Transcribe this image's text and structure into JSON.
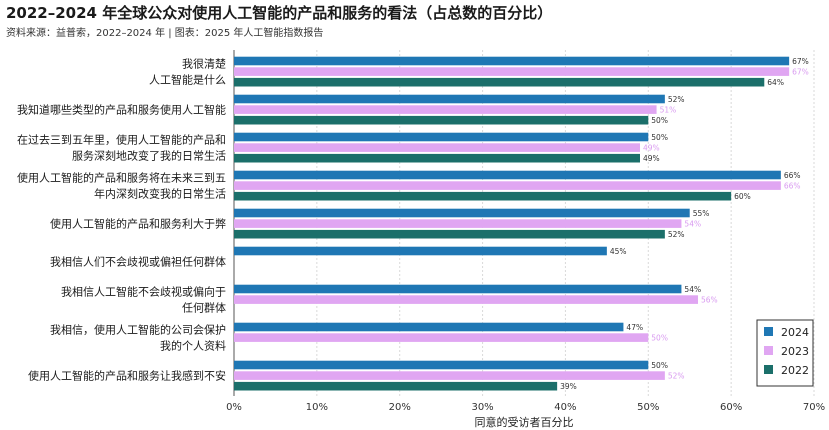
{
  "title": "2022–2024 年全球公众对使用人工智能的产品和服务的看法（占总数的百分比）",
  "source": "资料来源：益普索，2022–2024 年 | 图表：2025 年人工智能指数报告",
  "chart_data": {
    "type": "bar",
    "orientation": "horizontal",
    "xlabel": "同意的受访者百分比",
    "xlim": [
      0,
      70
    ],
    "xticks": [
      0,
      10,
      20,
      30,
      40,
      50,
      60,
      70
    ],
    "tick_suffix": "%",
    "grid": true,
    "legend_position": "bottom-right",
    "categories": [
      [
        "我很清楚",
        "人工智能是什么"
      ],
      [
        "我知道哪些类型的产品和服务使用人工智能"
      ],
      [
        "在过去三到五年里，使用人工智能的产品和",
        "服务深刻地改变了我的日常生活"
      ],
      [
        "使用人工智能的产品和服务将在未来三到五",
        "年内深刻改变我的日常生活"
      ],
      [
        "使用人工智能的产品和服务利大于弊"
      ],
      [
        "我相信人们不会歧视或偏袒任何群体"
      ],
      [
        "我相信人工智能不会歧视或偏向于",
        "任何群体"
      ],
      [
        "我相信，使用人工智能的公司会保护",
        "我的个人资料"
      ],
      [
        "使用人工智能的产品和服务让我感到不安"
      ]
    ],
    "series": [
      {
        "name": "2024",
        "color": "#1f77b4",
        "values": [
          67,
          52,
          50,
          66,
          55,
          45,
          54,
          47,
          50
        ]
      },
      {
        "name": "2023",
        "color": "#e0a6f2",
        "values": [
          67,
          51,
          49,
          66,
          54,
          null,
          56,
          50,
          52
        ]
      },
      {
        "name": "2022",
        "color": "#1b6f6a",
        "values": [
          64,
          50,
          49,
          60,
          52,
          null,
          null,
          null,
          39
        ]
      }
    ]
  }
}
